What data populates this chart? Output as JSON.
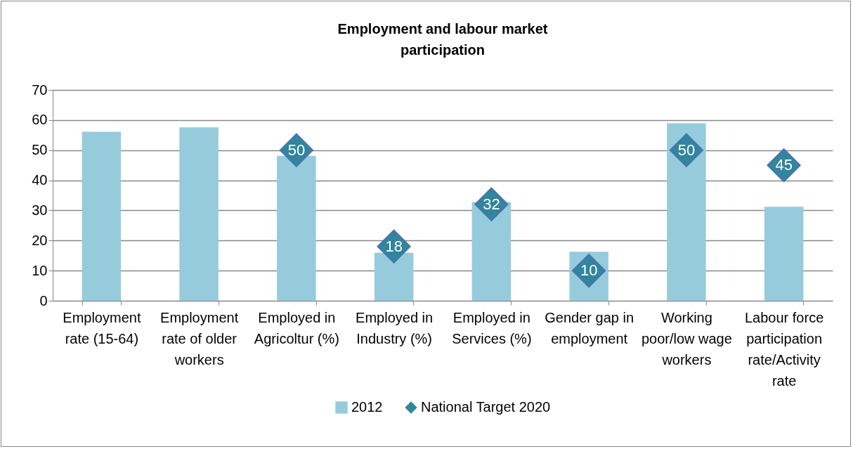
{
  "chart_data": {
    "type": "bar",
    "title": [
      "Employment and labour market",
      "participation"
    ],
    "categories": [
      "Employment rate (15-64)",
      "Employment rate of older workers",
      "Employed in Agricoltur (%)",
      "Employed in Industry (%)",
      "Employed in Services (%)",
      "Gender gap in employment",
      "Working poor/low wage workers",
      "Labour force participation rate/Activity rate"
    ],
    "series": [
      {
        "name": "2012",
        "color": "#96cbdc",
        "values": [
          56.1,
          57.6,
          48.1,
          15.9,
          32.8,
          16.3,
          58.9,
          31.2
        ]
      },
      {
        "name": "National Target 2020",
        "type": "scatter",
        "marker": "diamond",
        "color": "#31859c",
        "values": [
          null,
          null,
          50,
          18,
          32,
          10,
          50,
          45
        ],
        "value_labels": [
          null,
          null,
          "50",
          "18",
          "32",
          "10",
          "50",
          "45"
        ]
      }
    ],
    "ylim": [
      0,
      70
    ],
    "yticks": [
      0,
      10,
      20,
      30,
      40,
      50,
      60,
      70
    ],
    "grid": "y",
    "legend": "bottom"
  }
}
